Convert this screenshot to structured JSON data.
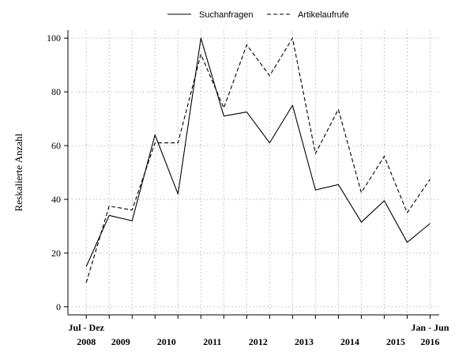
{
  "chart_data": {
    "type": "line",
    "ylabel": "Reskalierte Anzahl",
    "ylim": [
      -3,
      103
    ],
    "yticks": [
      0,
      20,
      40,
      60,
      80,
      100
    ],
    "grid": true,
    "legend_position": "top-center",
    "x_index": [
      0,
      1,
      2,
      3,
      4,
      5,
      6,
      7,
      8,
      9,
      10,
      11,
      12,
      13,
      14,
      15
    ],
    "xlim": [
      -0.8,
      15.4
    ],
    "x_tick_labels": [
      {
        "pos": 0,
        "upper": "Jul - Dez",
        "lower": "2008"
      },
      {
        "pos": 1.5,
        "upper": "",
        "lower": "2009"
      },
      {
        "pos": 3.5,
        "upper": "",
        "lower": "2010"
      },
      {
        "pos": 5.5,
        "upper": "",
        "lower": "2011"
      },
      {
        "pos": 7.5,
        "upper": "",
        "lower": "2012"
      },
      {
        "pos": 9.5,
        "upper": "",
        "lower": "2013"
      },
      {
        "pos": 11.5,
        "upper": "",
        "lower": "2014"
      },
      {
        "pos": 13.5,
        "upper": "",
        "lower": "2015"
      },
      {
        "pos": 15,
        "upper": "Jan - Jun",
        "lower": "2016"
      }
    ],
    "series": [
      {
        "name": "Suchanfragen",
        "style": "solid",
        "values": [
          15,
          34,
          32,
          64,
          42,
          100,
          71,
          72.5,
          61,
          75,
          43.5,
          45.5,
          31.5,
          39.5,
          24,
          31
        ]
      },
      {
        "name": "Artikelaufrufe",
        "style": "dashed",
        "values": [
          9,
          37.5,
          36,
          61,
          61,
          94,
          74,
          97.5,
          86,
          100,
          57,
          73.5,
          42.5,
          56,
          35,
          47.5
        ]
      }
    ],
    "colors": {
      "line": "#000000",
      "grid": "#b8b8b8",
      "axis": "#000000"
    }
  }
}
